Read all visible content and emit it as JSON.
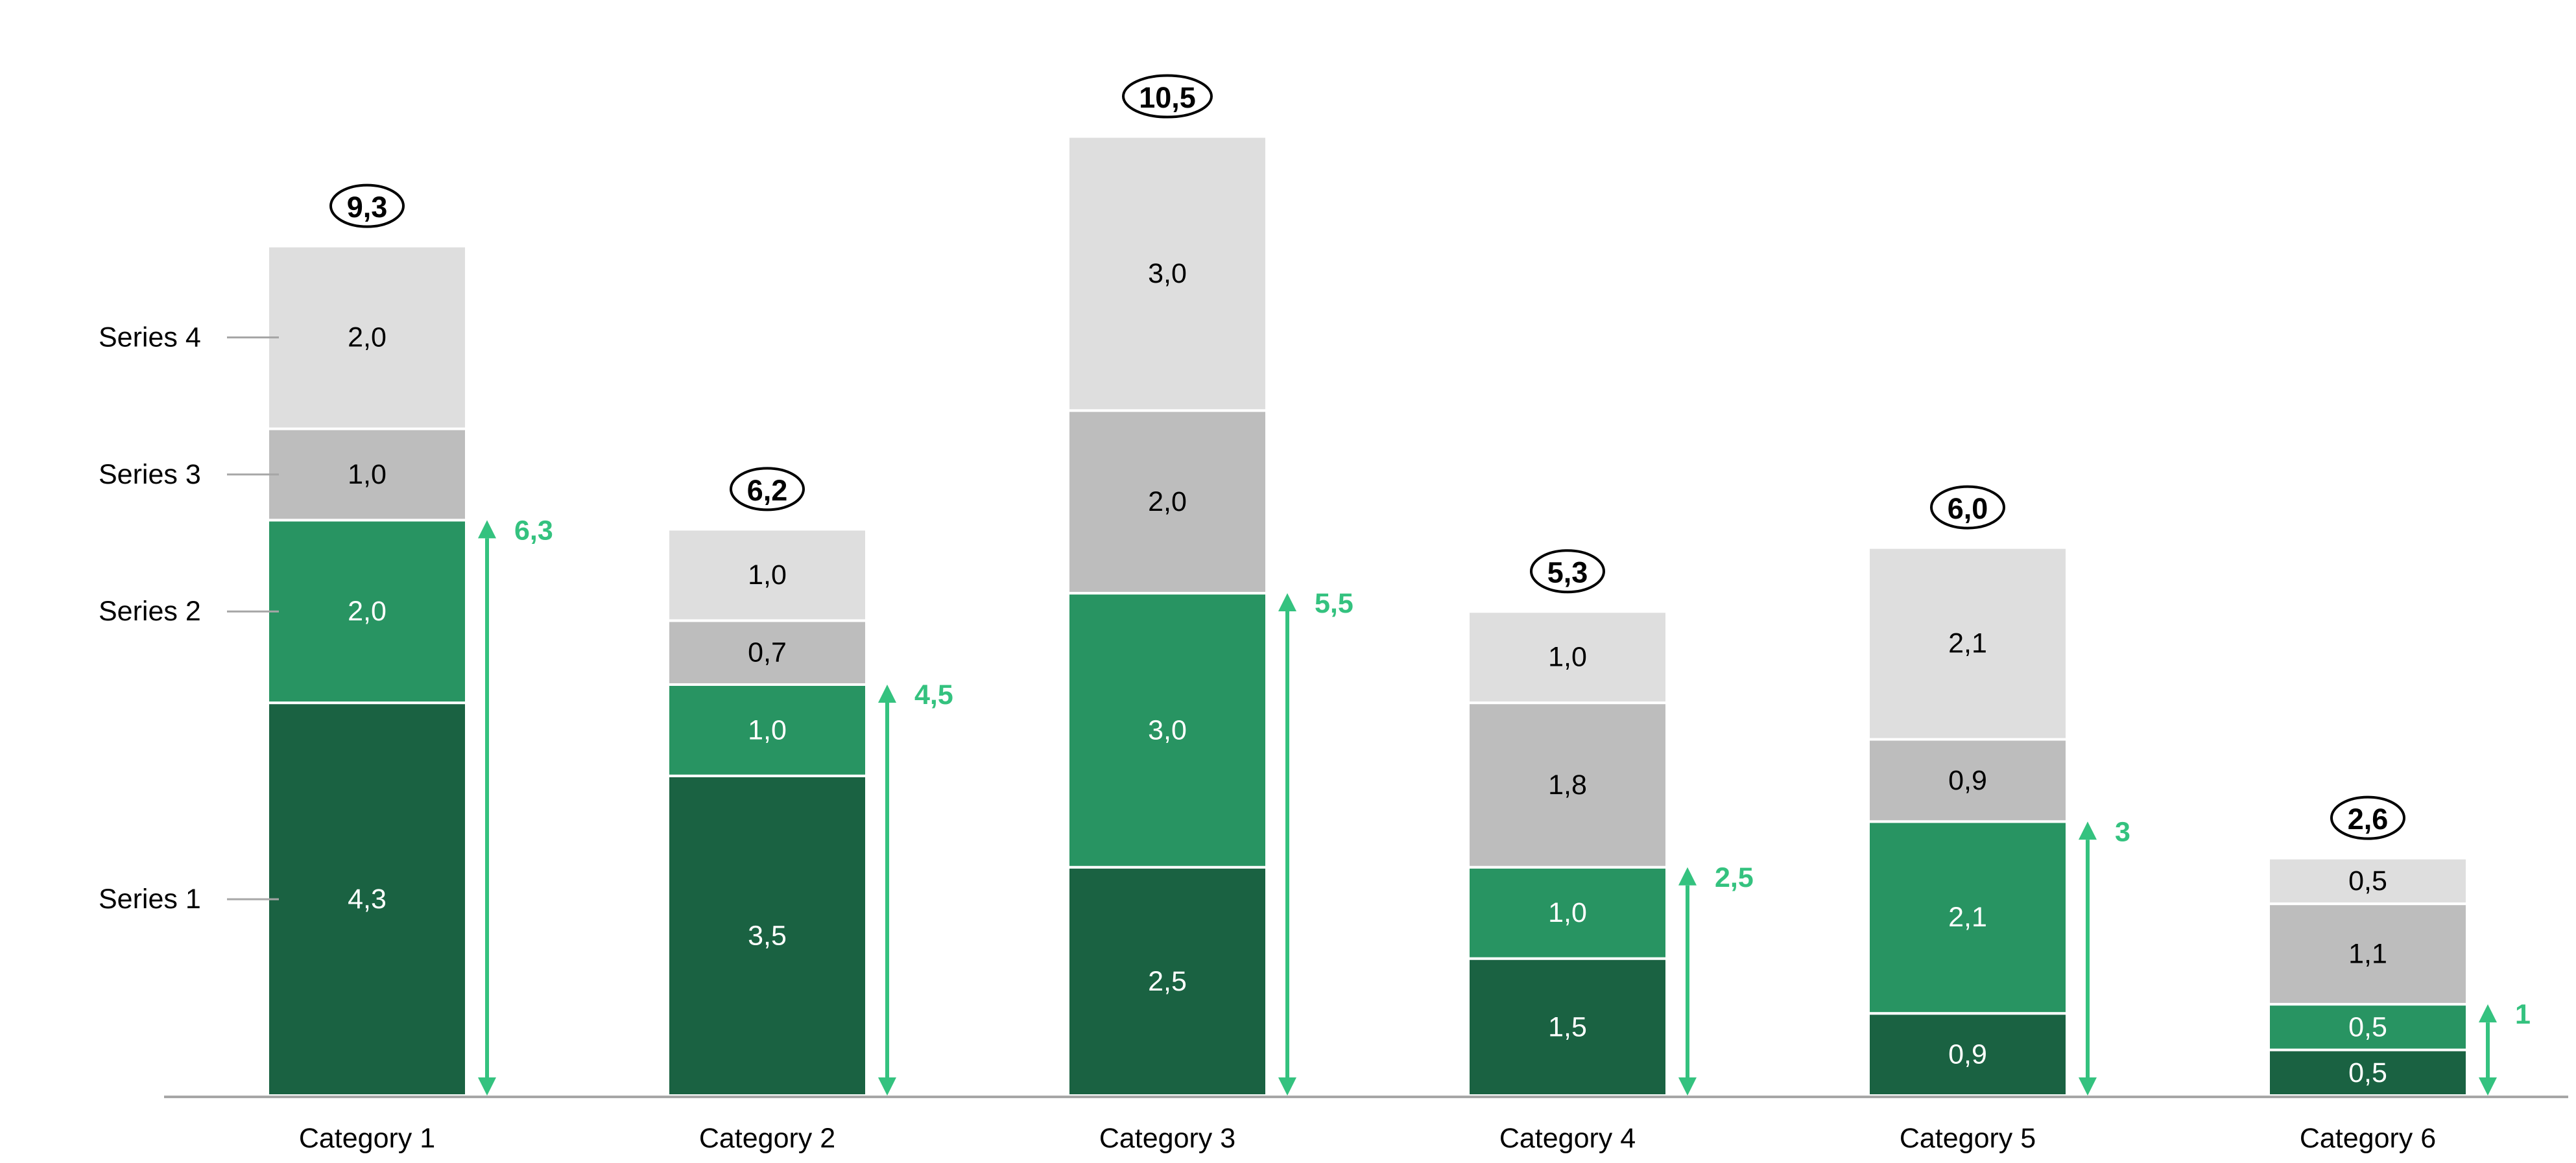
{
  "chart_data": {
    "type": "bar",
    "stacked": true,
    "title": "",
    "xlabel": "",
    "ylabel": "",
    "ylim": [
      0,
      10.5
    ],
    "grid": false,
    "legend_placement": "left, inline labels",
    "categories": [
      "Category 1",
      "Category 2",
      "Category 3",
      "Category 4",
      "Category 5",
      "Category 6"
    ],
    "series": [
      {
        "name": "Series 1",
        "color": "#1a6242",
        "text_color": "#ffffff",
        "values": [
          4.3,
          3.5,
          2.5,
          1.5,
          0.9,
          0.5
        ],
        "labels": [
          "4,3",
          "3,5",
          "2,5",
          "1,5",
          "0,9",
          "0,5"
        ]
      },
      {
        "name": "Series 2",
        "color": "#289462",
        "text_color": "#ffffff",
        "values": [
          2.0,
          1.0,
          3.0,
          1.0,
          2.1,
          0.5
        ],
        "labels": [
          "2,0",
          "1,0",
          "3,0",
          "1,0",
          "2,1",
          "0,5"
        ]
      },
      {
        "name": "Series 3",
        "color": "#bdbdbd",
        "text_color": "#000000",
        "values": [
          1.0,
          0.7,
          2.0,
          1.8,
          0.9,
          1.1
        ],
        "labels": [
          "1,0",
          "0,7",
          "2,0",
          "1,8",
          "0,9",
          "1,1"
        ]
      },
      {
        "name": "Series 4",
        "color": "#dedede",
        "text_color": "#000000",
        "values": [
          2.0,
          1.0,
          3.0,
          1.0,
          2.1,
          0.5
        ],
        "labels": [
          "2,0",
          "1,0",
          "3,0",
          "1,0",
          "2,1",
          "0,5"
        ]
      }
    ],
    "totals": [
      "9,3",
      "6,2",
      "10,5",
      "5,3",
      "6,0",
      "2,6"
    ],
    "arrow_values": [
      6.3,
      4.5,
      5.5,
      2.5,
      3,
      1
    ],
    "arrow_labels": [
      "6,3",
      "4,5",
      "5,5",
      "2,5",
      "3",
      "1"
    ],
    "arrow_color": "#34c27f"
  }
}
